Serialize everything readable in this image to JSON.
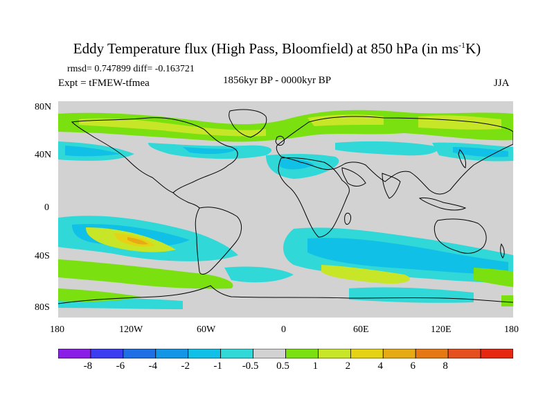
{
  "title": {
    "prefix": "Eddy Temperature flux (High Pass, Bloomfield) at 850 hPa (in ms",
    "sup": "-1",
    "suffix": "K)"
  },
  "stats_line": "rmsd= 0.747899 diff= -0.163721",
  "experiment": "Expt = tFMEW-tfmea",
  "period": "1856kyr BP - 0000kyr BP",
  "season": "JJA",
  "map": {
    "lon_range": [
      -180,
      180
    ],
    "lat_range": [
      -90,
      90
    ],
    "y_ticks": [
      "80N",
      "40N",
      "0",
      "40S",
      "80S"
    ],
    "x_ticks": [
      "180",
      "120W",
      "60W",
      "0",
      "60E",
      "120E",
      "180"
    ]
  },
  "colorbar": {
    "colors": [
      "#8b1ee6",
      "#3c3cf0",
      "#1e6ee6",
      "#1496e6",
      "#10c0e6",
      "#30d8d8",
      "#d2d2d2",
      "#7ae010",
      "#c8e628",
      "#e6d214",
      "#e6aa14",
      "#e67814",
      "#e6501e",
      "#e62810"
    ],
    "labels": [
      "-8",
      "-6",
      "-4",
      "-2",
      "-1",
      "-0.5",
      "0.5",
      "1",
      "2",
      "4",
      "6",
      "8"
    ]
  },
  "colors": {
    "background": "#d2d2d2",
    "coastline": "#000000"
  }
}
